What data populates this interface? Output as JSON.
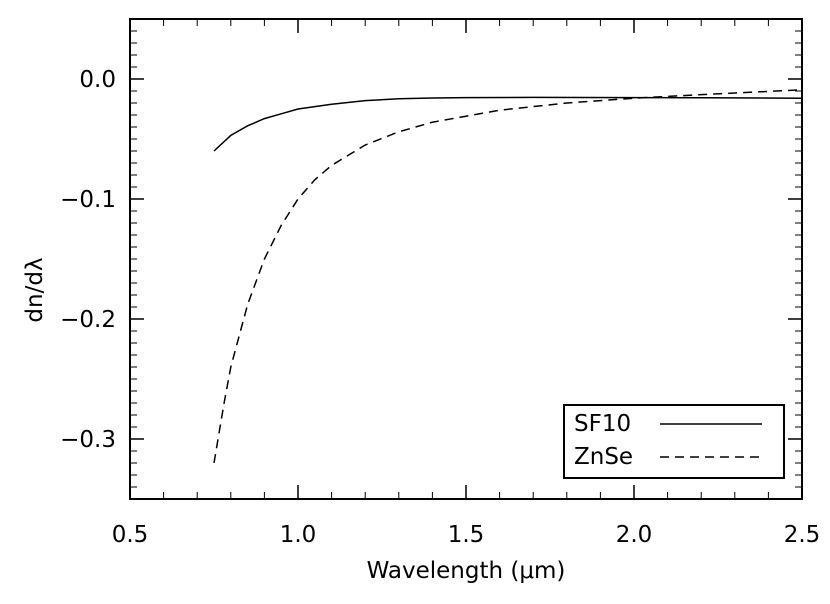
{
  "chart_data": {
    "type": "line",
    "xlabel": "Wavelength (μm)",
    "ylabel": "dn/dλ",
    "xlim": [
      0.5,
      2.5
    ],
    "ylim": [
      -0.35,
      0.05
    ],
    "x_ticks": [
      0.5,
      1.0,
      1.5,
      2.0,
      2.5
    ],
    "x_tick_labels": [
      "0.5",
      "1.0",
      "1.5",
      "2.0",
      "2.5"
    ],
    "y_ticks": [
      0.0,
      -0.1,
      -0.2,
      -0.3
    ],
    "y_tick_labels": [
      "0.0",
      "−0.1",
      "−0.2",
      "−0.3"
    ],
    "grid": false,
    "legend": "bottom-right",
    "series": [
      {
        "name": "SF10",
        "style": "solid",
        "x": [
          0.75,
          0.8,
          0.85,
          0.9,
          0.95,
          1.0,
          1.1,
          1.2,
          1.3,
          1.4,
          1.5,
          1.7,
          2.0,
          2.2,
          2.5
        ],
        "y": [
          -0.06,
          -0.047,
          -0.039,
          -0.033,
          -0.029,
          -0.025,
          -0.021,
          -0.018,
          -0.0165,
          -0.0158,
          -0.0155,
          -0.0153,
          -0.0155,
          -0.0157,
          -0.016
        ]
      },
      {
        "name": "ZnSe",
        "style": "dashed",
        "x": [
          0.75,
          0.78,
          0.8,
          0.85,
          0.9,
          0.95,
          1.0,
          1.05,
          1.1,
          1.2,
          1.3,
          1.4,
          1.5,
          1.6,
          1.8,
          2.0,
          2.2,
          2.5
        ],
        "y": [
          -0.32,
          -0.27,
          -0.24,
          -0.188,
          -0.15,
          -0.122,
          -0.1,
          -0.084,
          -0.072,
          -0.055,
          -0.044,
          -0.036,
          -0.031,
          -0.026,
          -0.02,
          -0.016,
          -0.013,
          -0.009
        ]
      }
    ]
  }
}
